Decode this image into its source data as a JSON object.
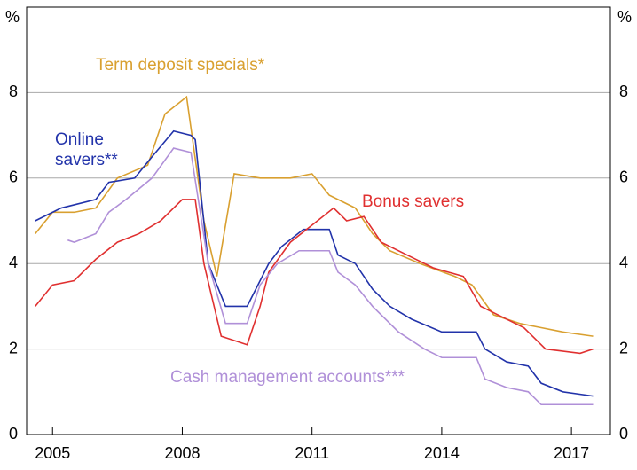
{
  "chart_data": {
    "type": "line",
    "y_label": "%",
    "xlim": [
      2004.4,
      2017.9
    ],
    "xticks": [
      2005,
      2008,
      2011,
      2014,
      2017
    ],
    "ylim": [
      0,
      10
    ],
    "yticks": [
      0,
      2,
      4,
      6,
      8
    ],
    "y2lim": [
      0,
      10
    ],
    "y2ticks": [
      0,
      2,
      4,
      6,
      8
    ],
    "grid": true,
    "series": [
      {
        "name": "Term deposit specials*",
        "color": "#d9a030",
        "x": [
          2004.6,
          2005.0,
          2005.5,
          2006.0,
          2006.5,
          2007.2,
          2007.6,
          2008.1,
          2008.5,
          2008.8,
          2009.2,
          2009.8,
          2010.5,
          2011.0,
          2011.4,
          2012.0,
          2012.4,
          2012.8,
          2013.5,
          2014.3,
          2014.7,
          2015.2,
          2015.8,
          2016.3,
          2016.8,
          2017.5
        ],
        "values": [
          4.7,
          5.2,
          5.2,
          5.3,
          6.0,
          6.3,
          7.5,
          7.9,
          5.0,
          3.7,
          6.1,
          6.0,
          6.0,
          6.1,
          5.6,
          5.3,
          4.7,
          4.3,
          4.0,
          3.7,
          3.5,
          2.8,
          2.6,
          2.5,
          2.4,
          2.3
        ]
      },
      {
        "name": "Online savers**",
        "color": "#2233aa",
        "x": [
          2004.6,
          2005.2,
          2006.0,
          2006.3,
          2006.9,
          2007.3,
          2007.8,
          2008.2,
          2008.3,
          2008.6,
          2009.0,
          2009.5,
          2010.0,
          2010.3,
          2010.8,
          2011.4,
          2011.6,
          2012.0,
          2012.4,
          2012.8,
          2013.3,
          2014.0,
          2014.8,
          2015.0,
          2015.5,
          2016.0,
          2016.3,
          2016.8,
          2017.5
        ],
        "values": [
          5.0,
          5.3,
          5.5,
          5.9,
          6.0,
          6.5,
          7.1,
          7.0,
          6.9,
          4.0,
          3.0,
          3.0,
          4.0,
          4.4,
          4.8,
          4.8,
          4.2,
          4.0,
          3.4,
          3.0,
          2.7,
          2.4,
          2.4,
          2.0,
          1.7,
          1.6,
          1.2,
          1.0,
          0.9
        ]
      },
      {
        "name": "Bonus savers",
        "color": "#e03030",
        "x": [
          2004.6,
          2005.0,
          2005.5,
          2006.0,
          2006.5,
          2007.0,
          2007.5,
          2008.0,
          2008.3,
          2008.5,
          2008.9,
          2009.5,
          2009.8,
          2010.0,
          2010.5,
          2011.0,
          2011.5,
          2011.8,
          2012.2,
          2012.6,
          2013.2,
          2013.8,
          2014.5,
          2014.9,
          2015.3,
          2015.9,
          2016.4,
          2017.2,
          2017.5
        ],
        "values": [
          3.0,
          3.5,
          3.6,
          4.1,
          4.5,
          4.7,
          5.0,
          5.5,
          5.5,
          4.0,
          2.3,
          2.1,
          3.0,
          3.8,
          4.5,
          4.9,
          5.3,
          5.0,
          5.1,
          4.5,
          4.2,
          3.9,
          3.7,
          3.0,
          2.8,
          2.5,
          2.0,
          1.9,
          2.0
        ]
      },
      {
        "name": "Cash management accounts***",
        "color": "#b090d8",
        "x": [
          2005.35,
          2005.5,
          2006.0,
          2006.3,
          2006.7,
          2007.3,
          2007.8,
          2008.2,
          2008.6,
          2009.0,
          2009.5,
          2009.8,
          2010.2,
          2010.7,
          2011.4,
          2011.6,
          2012.0,
          2012.4,
          2013.0,
          2013.6,
          2014.0,
          2014.8,
          2015.0,
          2015.5,
          2016.0,
          2016.3,
          2017.5
        ],
        "values": [
          4.55,
          4.5,
          4.7,
          5.2,
          5.5,
          6.0,
          6.7,
          6.6,
          4.0,
          2.6,
          2.6,
          3.5,
          4.0,
          4.3,
          4.3,
          3.8,
          3.5,
          3.0,
          2.4,
          2.0,
          1.8,
          1.8,
          1.3,
          1.1,
          1.0,
          0.7,
          0.7
        ]
      }
    ]
  }
}
